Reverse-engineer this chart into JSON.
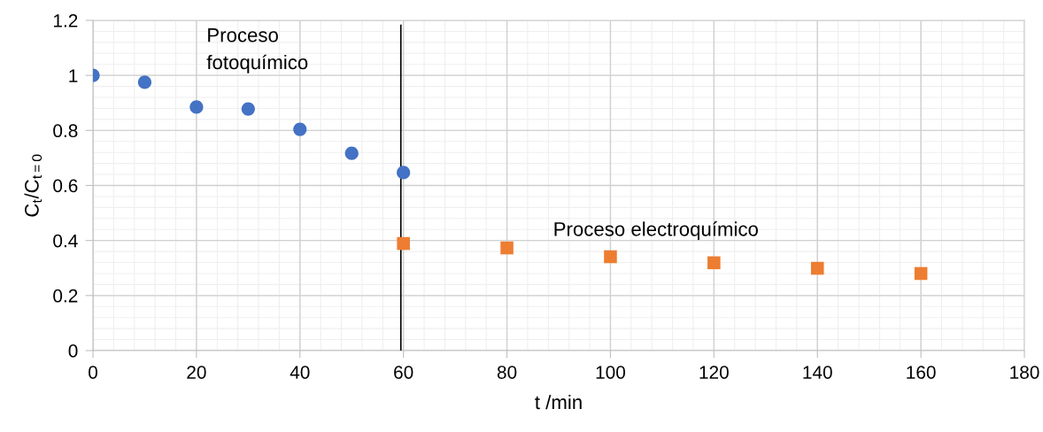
{
  "chart_data": {
    "type": "scatter",
    "xlabel": "t /min",
    "ylabel": "C$_{t}$/C$_{t=0}$",
    "series": [
      {
        "color": "#4472c4",
        "marker": "circle",
        "x": [
          0,
          10,
          20,
          30,
          40,
          50,
          60
        ],
        "values": [
          1.0,
          0.975,
          0.885,
          0.878,
          0.804,
          0.717,
          0.647
        ]
      },
      {
        "color": "#ed7d31",
        "marker": "square",
        "x": [
          60,
          80,
          100,
          120,
          140,
          160
        ],
        "values": [
          0.389,
          0.373,
          0.341,
          0.319,
          0.299,
          0.28
        ]
      }
    ],
    "xlim": [
      0,
      180
    ],
    "xticks": [
      0,
      20,
      40,
      60,
      80,
      100,
      120,
      140,
      160,
      180
    ],
    "ylim": [
      0,
      1.2
    ],
    "yticks": [
      0,
      0.2,
      0.4,
      0.6,
      0.8,
      1,
      1.2
    ],
    "grid": true,
    "ref_lines": [
      {
        "axis": "x",
        "value": 59.5,
        "color": "#000000"
      }
    ],
    "annotations": [
      "Proceso\nfotoquímico",
      "Proceso electroquímico"
    ]
  }
}
